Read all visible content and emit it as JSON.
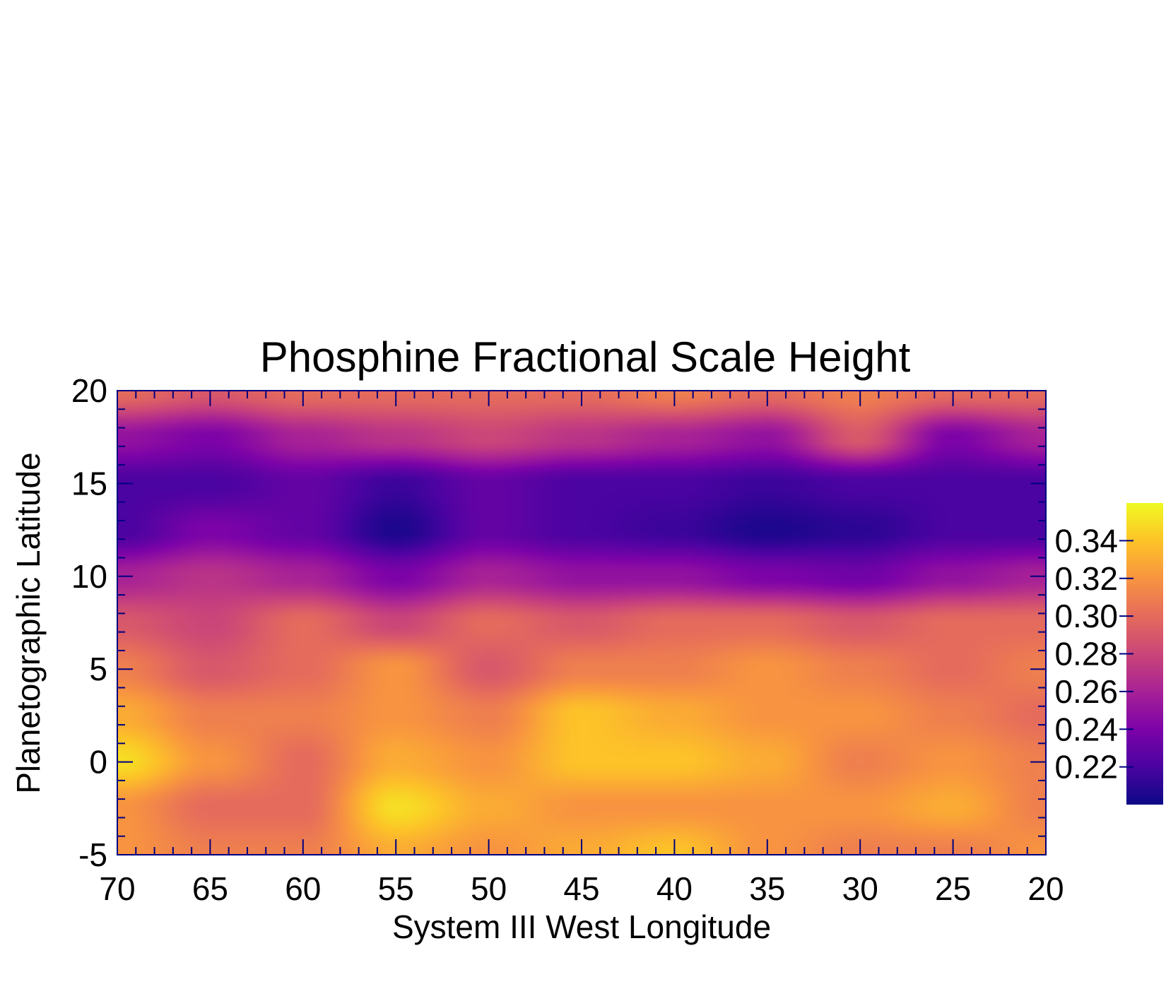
{
  "chart_data": {
    "type": "heatmap",
    "title": "Phosphine Fractional Scale Height",
    "xlabel": "System III West Longitude",
    "ylabel": "Planetographic Latitude",
    "xlim": [
      70,
      20
    ],
    "ylim": [
      -5,
      20
    ],
    "x_reversed": true,
    "x_ticks": [
      70,
      65,
      60,
      55,
      50,
      45,
      40,
      35,
      30,
      25,
      20
    ],
    "x_tick_labels": [
      "70",
      "65",
      "60",
      "55",
      "50",
      "45",
      "40",
      "35",
      "30",
      "25",
      "20"
    ],
    "y_ticks": [
      -5,
      0,
      5,
      10,
      15,
      20
    ],
    "y_tick_labels": [
      "-5",
      "0",
      "5",
      "10",
      "15",
      "20"
    ],
    "colorbar": {
      "colormap": "plasma",
      "range": [
        0.2,
        0.36
      ],
      "ticks": [
        0.22,
        0.24,
        0.26,
        0.28,
        0.3,
        0.32,
        0.34
      ],
      "tick_labels": [
        "0.22",
        "0.24",
        "0.26",
        "0.28",
        "0.30",
        "0.32",
        "0.34"
      ],
      "placement": "right"
    },
    "x": [
      70,
      65,
      60,
      55,
      50,
      45,
      40,
      35,
      30,
      25,
      20
    ],
    "y": [
      20,
      17.5,
      15,
      12.5,
      10,
      7.5,
      5,
      2.5,
      0,
      -2.5,
      -5
    ],
    "values": [
      [
        0.3,
        0.29,
        0.3,
        0.3,
        0.3,
        0.3,
        0.31,
        0.3,
        0.31,
        0.3,
        0.3
      ],
      [
        0.25,
        0.24,
        0.26,
        0.27,
        0.28,
        0.27,
        0.26,
        0.25,
        0.29,
        0.24,
        0.26
      ],
      [
        0.22,
        0.22,
        0.23,
        0.215,
        0.23,
        0.22,
        0.22,
        0.215,
        0.22,
        0.22,
        0.22
      ],
      [
        0.22,
        0.24,
        0.23,
        0.205,
        0.23,
        0.22,
        0.215,
        0.205,
        0.21,
        0.22,
        0.22
      ],
      [
        0.26,
        0.27,
        0.26,
        0.24,
        0.26,
        0.25,
        0.25,
        0.24,
        0.235,
        0.25,
        0.26
      ],
      [
        0.29,
        0.28,
        0.3,
        0.28,
        0.3,
        0.29,
        0.3,
        0.3,
        0.29,
        0.3,
        0.3
      ],
      [
        0.31,
        0.29,
        0.3,
        0.32,
        0.29,
        0.31,
        0.31,
        0.32,
        0.31,
        0.3,
        0.31
      ],
      [
        0.33,
        0.31,
        0.31,
        0.32,
        0.31,
        0.34,
        0.33,
        0.32,
        0.32,
        0.31,
        0.3
      ],
      [
        0.35,
        0.32,
        0.3,
        0.33,
        0.32,
        0.34,
        0.34,
        0.33,
        0.31,
        0.32,
        0.31
      ],
      [
        0.32,
        0.3,
        0.3,
        0.35,
        0.33,
        0.32,
        0.32,
        0.32,
        0.32,
        0.33,
        0.31
      ],
      [
        0.32,
        0.31,
        0.31,
        0.33,
        0.32,
        0.33,
        0.34,
        0.32,
        0.31,
        0.31,
        0.32
      ]
    ],
    "grid": false,
    "frame_color": "#00007f"
  }
}
